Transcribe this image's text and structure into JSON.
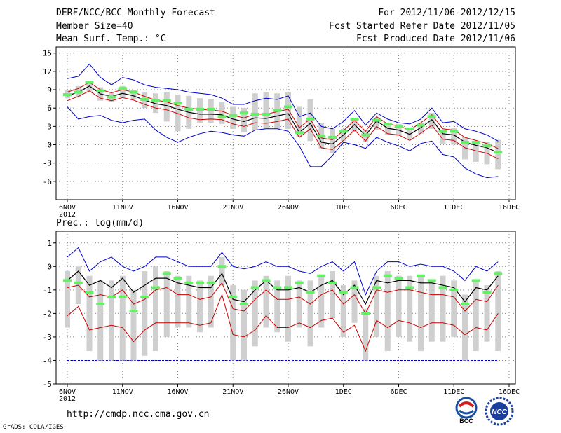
{
  "header": {
    "title": "DERF/NCC/BCC Monthly Forecast",
    "member_size": "Member Size=40",
    "variable": "Mean Surf. Temp.: °C",
    "period": "For 2012/11/06-2012/12/15",
    "started": "Fcst Started Refer Date 2012/11/05",
    "produced": "Fcst Produced Date 2012/11/06"
  },
  "footer": {
    "url": "http://cmdp.ncc.cma.gov.cn",
    "grads": "GrADS: COLA/IGES",
    "logo_left_text": "BCC",
    "logo_right_text": "NCC"
  },
  "colors": {
    "ensemble_mean": "#000000",
    "spread": "#cc0000",
    "envelope": "#0000cc",
    "box": "#cfcfcf",
    "median": "#66ee66",
    "reference": "#0000cc"
  },
  "chart_data": [
    {
      "type": "line",
      "title": "Mean Surf. Temp.: °C",
      "x_ticks": [
        "6NOV",
        "11NOV",
        "16NOV",
        "21NOV",
        "26NOV",
        "1DEC",
        "6DEC",
        "11DEC",
        "16DEC"
      ],
      "x_year": "2012",
      "ylim": [
        -9,
        16
      ],
      "yticks": [
        -6,
        -3,
        0,
        3,
        6,
        9,
        12,
        15
      ],
      "series": [
        {
          "name": "ensemble mean",
          "values": [
            8.0,
            8.6,
            9.6,
            8.3,
            7.9,
            8.4,
            8.0,
            7.3,
            6.7,
            6.4,
            5.8,
            5.3,
            5.0,
            5.0,
            4.9,
            4.2,
            3.8,
            4.4,
            4.3,
            4.7,
            5.1,
            2.0,
            3.5,
            0.4,
            0.1,
            1.6,
            3.3,
            1.5,
            3.9,
            2.7,
            2.4,
            1.7,
            2.8,
            4.1,
            1.8,
            1.6,
            0.4,
            -0.1,
            -0.5,
            -1.3
          ]
        },
        {
          "name": "upper spread",
          "values": [
            8.6,
            9.2,
            10.2,
            9.0,
            8.5,
            9.0,
            8.6,
            7.9,
            7.3,
            7.0,
            6.4,
            6.0,
            5.8,
            5.7,
            5.5,
            4.8,
            4.4,
            5.0,
            5.0,
            5.4,
            5.8,
            2.8,
            4.2,
            1.1,
            0.8,
            2.3,
            4.0,
            2.2,
            4.6,
            3.4,
            3.1,
            2.4,
            3.6,
            4.9,
            2.6,
            2.4,
            1.2,
            0.7,
            0.2,
            -0.6
          ]
        },
        {
          "name": "lower spread",
          "values": [
            7.2,
            7.9,
            8.8,
            7.6,
            7.2,
            7.7,
            7.3,
            6.6,
            6.0,
            5.7,
            5.1,
            4.4,
            4.1,
            4.2,
            4.1,
            3.4,
            3.0,
            3.6,
            3.5,
            3.8,
            4.2,
            1.2,
            2.6,
            -0.5,
            -0.8,
            0.7,
            2.4,
            0.6,
            3.0,
            1.8,
            1.6,
            0.7,
            1.9,
            3.2,
            0.9,
            0.7,
            -0.5,
            -1.0,
            -1.4,
            -2.3
          ]
        },
        {
          "name": "maximum",
          "values": [
            10.8,
            11.2,
            13.2,
            11.0,
            9.8,
            11.0,
            10.6,
            9.8,
            9.4,
            9.2,
            9.0,
            8.6,
            8.4,
            8.2,
            7.6,
            6.6,
            6.6,
            7.2,
            7.6,
            7.4,
            8.0,
            4.6,
            5.2,
            3.0,
            2.6,
            3.8,
            5.6,
            3.2,
            5.2,
            4.2,
            3.6,
            3.4,
            4.2,
            6.0,
            3.6,
            3.8,
            2.6,
            2.2,
            1.6,
            0.6
          ]
        },
        {
          "name": "minimum",
          "values": [
            6.2,
            4.2,
            4.6,
            4.8,
            4.0,
            3.6,
            4.0,
            4.2,
            2.4,
            1.2,
            0.4,
            1.2,
            1.8,
            2.2,
            2.0,
            1.6,
            1.4,
            2.4,
            2.6,
            2.6,
            2.2,
            -0.2,
            -3.6,
            -3.6,
            -1.8,
            0.4,
            0.0,
            -0.6,
            1.2,
            0.4,
            -0.2,
            -1.0,
            0.2,
            0.6,
            -1.6,
            -2.0,
            -3.8,
            -4.8,
            -5.4,
            -5.2
          ]
        }
      ],
      "box_low": [
        7.6,
        7.8,
        8.6,
        7.2,
        7.0,
        7.8,
        7.4,
        6.0,
        5.2,
        3.8,
        2.2,
        2.6,
        3.6,
        3.6,
        3.4,
        2.6,
        2.0,
        2.4,
        2.6,
        2.6,
        2.6,
        1.2,
        0.6,
        -0.6,
        -1.4,
        0.6,
        2.0,
        0.4,
        2.4,
        1.6,
        1.4,
        1.0,
        1.8,
        2.6,
        0.2,
        0.0,
        -2.4,
        -2.8,
        -3.2,
        -4.0
      ],
      "box_high": [
        9.0,
        9.6,
        10.4,
        9.4,
        8.6,
        9.6,
        9.0,
        8.6,
        8.4,
        8.6,
        8.2,
        8.0,
        7.6,
        7.4,
        7.0,
        6.2,
        6.0,
        8.4,
        8.6,
        8.4,
        8.6,
        6.2,
        7.4,
        3.6,
        2.6,
        2.6,
        4.2,
        2.4,
        4.4,
        3.6,
        3.4,
        2.6,
        3.6,
        5.2,
        2.4,
        2.8,
        1.2,
        0.4,
        0.4,
        0.8
      ],
      "median": [
        8.2,
        8.6,
        10.2,
        8.8,
        7.8,
        9.2,
        8.6,
        7.4,
        7.2,
        7.2,
        6.8,
        5.8,
        5.8,
        5.8,
        4.6,
        4.8,
        5.2,
        5.0,
        5.0,
        5.6,
        6.2,
        2.0,
        4.2,
        1.4,
        1.2,
        2.2,
        4.2,
        1.6,
        4.0,
        3.4,
        3.0,
        2.6,
        3.2,
        4.6,
        2.2,
        2.2,
        0.4,
        0.4,
        -0.2,
        -1.2
      ]
    },
    {
      "type": "line",
      "title": "Prec.: log(mm/d)",
      "x_ticks": [
        "6NOV",
        "11NOV",
        "16NOV",
        "21NOV",
        "26NOV",
        "1DEC",
        "6DEC",
        "11DEC",
        "16DEC"
      ],
      "x_year": "2012",
      "ylim": [
        -5,
        1.5
      ],
      "yticks": [
        -5,
        -4,
        -3,
        -2,
        -1,
        0,
        1
      ],
      "reference_line": -4,
      "series": [
        {
          "name": "ensemble mean",
          "values": [
            -0.6,
            -0.2,
            -0.8,
            -0.6,
            -0.9,
            -0.5,
            -1.1,
            -0.8,
            -0.5,
            -0.5,
            -0.7,
            -0.8,
            -0.9,
            -0.9,
            -0.3,
            -1.4,
            -1.5,
            -1.0,
            -0.6,
            -1.0,
            -1.0,
            -0.9,
            -1.1,
            -0.8,
            -0.6,
            -1.2,
            -0.8,
            -1.6,
            -0.6,
            -0.7,
            -0.6,
            -0.6,
            -0.7,
            -0.7,
            -0.8,
            -0.9,
            -1.5,
            -0.9,
            -1.0,
            -0.4
          ]
        },
        {
          "name": "upper spread",
          "values": [
            -0.9,
            -0.8,
            -1.3,
            -1.2,
            -1.3,
            -1.0,
            -1.6,
            -1.4,
            -1.0,
            -0.9,
            -1.2,
            -1.2,
            -1.4,
            -1.3,
            -0.7,
            -1.8,
            -1.9,
            -1.4,
            -1.0,
            -1.4,
            -1.4,
            -1.3,
            -1.6,
            -1.2,
            -1.0,
            -1.6,
            -1.2,
            -2.0,
            -1.0,
            -1.1,
            -1.0,
            -1.0,
            -1.1,
            -1.2,
            -1.2,
            -1.3,
            -1.9,
            -1.4,
            -1.5,
            -0.8
          ]
        },
        {
          "name": "lower spread",
          "values": [
            -2.1,
            -1.7,
            -2.7,
            -2.6,
            -2.5,
            -2.6,
            -3.2,
            -2.7,
            -2.4,
            -2.4,
            -2.4,
            -2.4,
            -2.5,
            -2.4,
            -1.2,
            -2.9,
            -3.0,
            -2.7,
            -2.1,
            -2.6,
            -2.6,
            -2.4,
            -2.6,
            -2.3,
            -2.2,
            -2.8,
            -2.5,
            -3.6,
            -2.3,
            -2.6,
            -2.3,
            -2.4,
            -2.6,
            -2.4,
            -2.4,
            -2.5,
            -2.9,
            -2.6,
            -2.7,
            -2.0
          ]
        },
        {
          "name": "maximum",
          "values": [
            0.4,
            0.8,
            -0.2,
            0.2,
            0.4,
            0.0,
            -0.2,
            0.0,
            0.4,
            0.4,
            0.2,
            0.0,
            0.0,
            0.0,
            0.6,
            0.0,
            -0.1,
            0.0,
            0.2,
            0.0,
            0.0,
            -0.2,
            -0.3,
            0.0,
            0.2,
            -0.2,
            0.2,
            -1.2,
            -0.2,
            0.2,
            0.2,
            0.0,
            0.1,
            0.0,
            0.0,
            -0.2,
            -0.6,
            0.0,
            -0.2,
            0.2
          ]
        }
      ],
      "box_low": [
        -2.6,
        -1.6,
        -3.6,
        -4.0,
        -4.0,
        -4.0,
        -4.0,
        -3.8,
        -3.6,
        -3.0,
        -2.6,
        -2.6,
        -2.8,
        -2.6,
        -0.8,
        -4.0,
        -4.0,
        -3.4,
        -2.6,
        -2.8,
        -3.2,
        -2.6,
        -3.4,
        -2.6,
        -2.2,
        -3.0,
        -2.4,
        -4.0,
        -3.0,
        -3.6,
        -3.0,
        -3.2,
        -3.6,
        -3.2,
        -3.2,
        -3.0,
        -4.0,
        -3.6,
        -3.2,
        -3.6
      ],
      "box_high": [
        -0.2,
        0.0,
        -0.4,
        -0.6,
        -0.6,
        -0.4,
        -1.0,
        -0.2,
        0.0,
        -0.2,
        -0.4,
        -0.4,
        -0.6,
        -0.4,
        0.4,
        -0.8,
        -1.0,
        -0.6,
        -0.4,
        -0.6,
        -0.4,
        -0.6,
        -0.6,
        -0.4,
        -0.2,
        -0.8,
        -0.6,
        -1.8,
        -0.4,
        -0.2,
        -0.4,
        -0.4,
        -0.4,
        -0.6,
        -0.4,
        -0.6,
        -1.2,
        -0.6,
        -0.8,
        -0.2
      ],
      "median": [
        -0.6,
        -0.7,
        -1.1,
        -1.6,
        -1.3,
        -1.3,
        -1.9,
        -1.3,
        -0.9,
        -0.3,
        -0.5,
        -0.7,
        -0.7,
        -0.7,
        0.0,
        -1.3,
        -1.6,
        -0.9,
        -0.6,
        -0.9,
        -0.9,
        -0.7,
        -1.1,
        -0.4,
        -0.7,
        -1.1,
        -0.9,
        -2.0,
        -0.9,
        -0.4,
        -0.5,
        -0.9,
        -0.4,
        -0.6,
        -0.9,
        -1.0,
        -1.6,
        -0.6,
        -1.1,
        -0.3
      ]
    }
  ]
}
